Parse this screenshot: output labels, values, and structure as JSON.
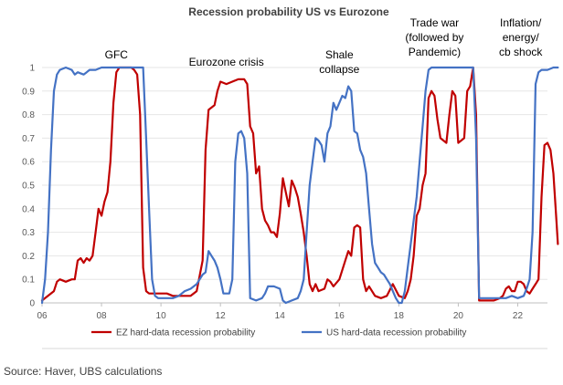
{
  "chart_data": {
    "type": "line",
    "title": "Recession probability US vs Eurozone",
    "xlabel": "",
    "ylabel": "",
    "xlim": [
      6,
      23
    ],
    "ylim": [
      0,
      1
    ],
    "x_ticks": [
      "06",
      "08",
      "10",
      "12",
      "14",
      "16",
      "18",
      "20",
      "22"
    ],
    "y_ticks": [
      "0",
      "0.1",
      "0.2",
      "0.3",
      "0.4",
      "0.5",
      "0.6",
      "0.7",
      "0.8",
      "0.9",
      "1"
    ],
    "grid": "horizontal",
    "legend_position": "bottom",
    "annotations": [
      {
        "lines": [
          "GFC"
        ],
        "x": 8.5
      },
      {
        "lines": [
          "Eurozone crisis"
        ],
        "x": 12.2
      },
      {
        "lines": [
          "Shale",
          "collapse"
        ],
        "x": 16.0
      },
      {
        "lines": [
          "Trade war",
          "(followed by",
          "Pandemic)"
        ],
        "x": 19.2
      },
      {
        "lines": [
          "Inflation/",
          "energy/",
          "cb shock"
        ],
        "x": 22.1
      }
    ],
    "series": [
      {
        "name": "EZ hard-data recession probability",
        "color": "#c00000",
        "points": [
          [
            6.0,
            0.01
          ],
          [
            6.2,
            0.03
          ],
          [
            6.4,
            0.05
          ],
          [
            6.5,
            0.09
          ],
          [
            6.6,
            0.1
          ],
          [
            6.8,
            0.09
          ],
          [
            7.0,
            0.1
          ],
          [
            7.1,
            0.1
          ],
          [
            7.2,
            0.18
          ],
          [
            7.3,
            0.19
          ],
          [
            7.4,
            0.17
          ],
          [
            7.5,
            0.19
          ],
          [
            7.6,
            0.18
          ],
          [
            7.7,
            0.2
          ],
          [
            7.8,
            0.3
          ],
          [
            7.9,
            0.4
          ],
          [
            8.0,
            0.37
          ],
          [
            8.1,
            0.43
          ],
          [
            8.2,
            0.47
          ],
          [
            8.3,
            0.6
          ],
          [
            8.4,
            0.85
          ],
          [
            8.5,
            0.98
          ],
          [
            8.6,
            1.0
          ],
          [
            9.0,
            1.0
          ],
          [
            9.1,
            0.99
          ],
          [
            9.2,
            0.97
          ],
          [
            9.3,
            0.8
          ],
          [
            9.4,
            0.15
          ],
          [
            9.5,
            0.05
          ],
          [
            9.6,
            0.04
          ],
          [
            9.8,
            0.04
          ],
          [
            10.0,
            0.04
          ],
          [
            10.2,
            0.04
          ],
          [
            10.4,
            0.03
          ],
          [
            10.6,
            0.03
          ],
          [
            10.8,
            0.03
          ],
          [
            11.0,
            0.03
          ],
          [
            11.2,
            0.05
          ],
          [
            11.4,
            0.18
          ],
          [
            11.5,
            0.65
          ],
          [
            11.6,
            0.82
          ],
          [
            11.7,
            0.83
          ],
          [
            11.8,
            0.84
          ],
          [
            11.9,
            0.9
          ],
          [
            12.0,
            0.94
          ],
          [
            12.2,
            0.93
          ],
          [
            12.4,
            0.94
          ],
          [
            12.6,
            0.95
          ],
          [
            12.8,
            0.95
          ],
          [
            12.9,
            0.93
          ],
          [
            13.0,
            0.75
          ],
          [
            13.1,
            0.72
          ],
          [
            13.2,
            0.55
          ],
          [
            13.3,
            0.58
          ],
          [
            13.4,
            0.4
          ],
          [
            13.5,
            0.35
          ],
          [
            13.6,
            0.33
          ],
          [
            13.7,
            0.3
          ],
          [
            13.8,
            0.3
          ],
          [
            13.9,
            0.28
          ],
          [
            14.0,
            0.38
          ],
          [
            14.1,
            0.53
          ],
          [
            14.2,
            0.47
          ],
          [
            14.3,
            0.41
          ],
          [
            14.4,
            0.52
          ],
          [
            14.5,
            0.49
          ],
          [
            14.6,
            0.45
          ],
          [
            14.7,
            0.38
          ],
          [
            14.8,
            0.3
          ],
          [
            14.9,
            0.2
          ],
          [
            15.0,
            0.08
          ],
          [
            15.1,
            0.05
          ],
          [
            15.2,
            0.08
          ],
          [
            15.3,
            0.05
          ],
          [
            15.5,
            0.06
          ],
          [
            15.6,
            0.1
          ],
          [
            15.7,
            0.09
          ],
          [
            15.8,
            0.07
          ],
          [
            16.0,
            0.1
          ],
          [
            16.2,
            0.18
          ],
          [
            16.3,
            0.22
          ],
          [
            16.4,
            0.2
          ],
          [
            16.5,
            0.32
          ],
          [
            16.6,
            0.33
          ],
          [
            16.7,
            0.32
          ],
          [
            16.8,
            0.1
          ],
          [
            16.9,
            0.05
          ],
          [
            17.0,
            0.07
          ],
          [
            17.2,
            0.03
          ],
          [
            17.4,
            0.02
          ],
          [
            17.6,
            0.03
          ],
          [
            17.8,
            0.08
          ],
          [
            18.0,
            0.03
          ],
          [
            18.2,
            0.02
          ],
          [
            18.3,
            0.05
          ],
          [
            18.4,
            0.1
          ],
          [
            18.5,
            0.2
          ],
          [
            18.6,
            0.37
          ],
          [
            18.7,
            0.4
          ],
          [
            18.8,
            0.5
          ],
          [
            18.9,
            0.55
          ],
          [
            19.0,
            0.87
          ],
          [
            19.1,
            0.9
          ],
          [
            19.2,
            0.88
          ],
          [
            19.3,
            0.78
          ],
          [
            19.4,
            0.7
          ],
          [
            19.6,
            0.68
          ],
          [
            19.7,
            0.8
          ],
          [
            19.8,
            0.9
          ],
          [
            19.9,
            0.88
          ],
          [
            20.0,
            0.68
          ],
          [
            20.2,
            0.7
          ],
          [
            20.3,
            0.9
          ],
          [
            20.4,
            0.92
          ],
          [
            20.5,
            1.0
          ],
          [
            20.6,
            0.8
          ],
          [
            20.7,
            0.01
          ],
          [
            21.0,
            0.01
          ],
          [
            21.2,
            0.01
          ],
          [
            21.4,
            0.02
          ],
          [
            21.5,
            0.03
          ],
          [
            21.6,
            0.06
          ],
          [
            21.7,
            0.07
          ],
          [
            21.8,
            0.05
          ],
          [
            21.9,
            0.05
          ],
          [
            22.0,
            0.09
          ],
          [
            22.1,
            0.09
          ],
          [
            22.2,
            0.08
          ],
          [
            22.3,
            0.05
          ],
          [
            22.4,
            0.04
          ],
          [
            22.5,
            0.06
          ],
          [
            22.6,
            0.08
          ],
          [
            22.7,
            0.1
          ],
          [
            22.8,
            0.45
          ],
          [
            22.9,
            0.67
          ],
          [
            23.0,
            0.68
          ],
          [
            23.1,
            0.65
          ],
          [
            23.2,
            0.55
          ],
          [
            23.3,
            0.35
          ],
          [
            23.35,
            0.25
          ]
        ]
      },
      {
        "name": "US hard-data recession probability",
        "color": "#4472c4",
        "points": [
          [
            6.0,
            0.0
          ],
          [
            6.1,
            0.1
          ],
          [
            6.2,
            0.3
          ],
          [
            6.3,
            0.65
          ],
          [
            6.4,
            0.9
          ],
          [
            6.5,
            0.97
          ],
          [
            6.6,
            0.99
          ],
          [
            6.8,
            1.0
          ],
          [
            7.0,
            0.99
          ],
          [
            7.1,
            0.97
          ],
          [
            7.2,
            0.98
          ],
          [
            7.4,
            0.97
          ],
          [
            7.5,
            0.98
          ],
          [
            7.6,
            0.99
          ],
          [
            7.8,
            0.99
          ],
          [
            8.0,
            1.0
          ],
          [
            9.0,
            1.0
          ],
          [
            9.4,
            1.0
          ],
          [
            9.5,
            0.7
          ],
          [
            9.6,
            0.4
          ],
          [
            9.7,
            0.1
          ],
          [
            9.8,
            0.03
          ],
          [
            9.9,
            0.02
          ],
          [
            10.0,
            0.02
          ],
          [
            10.2,
            0.02
          ],
          [
            10.4,
            0.02
          ],
          [
            10.6,
            0.03
          ],
          [
            10.8,
            0.05
          ],
          [
            11.0,
            0.06
          ],
          [
            11.2,
            0.08
          ],
          [
            11.4,
            0.12
          ],
          [
            11.5,
            0.13
          ],
          [
            11.6,
            0.22
          ],
          [
            11.7,
            0.2
          ],
          [
            11.8,
            0.18
          ],
          [
            11.9,
            0.15
          ],
          [
            12.0,
            0.1
          ],
          [
            12.1,
            0.04
          ],
          [
            12.2,
            0.04
          ],
          [
            12.3,
            0.04
          ],
          [
            12.4,
            0.1
          ],
          [
            12.5,
            0.6
          ],
          [
            12.6,
            0.72
          ],
          [
            12.7,
            0.73
          ],
          [
            12.8,
            0.7
          ],
          [
            12.9,
            0.55
          ],
          [
            13.0,
            0.02
          ],
          [
            13.2,
            0.01
          ],
          [
            13.4,
            0.02
          ],
          [
            13.5,
            0.04
          ],
          [
            13.6,
            0.07
          ],
          [
            13.8,
            0.07
          ],
          [
            14.0,
            0.06
          ],
          [
            14.1,
            0.01
          ],
          [
            14.2,
            0.0
          ],
          [
            14.4,
            0.01
          ],
          [
            14.6,
            0.02
          ],
          [
            14.7,
            0.05
          ],
          [
            14.8,
            0.1
          ],
          [
            14.9,
            0.3
          ],
          [
            15.0,
            0.5
          ],
          [
            15.1,
            0.6
          ],
          [
            15.2,
            0.7
          ],
          [
            15.3,
            0.69
          ],
          [
            15.4,
            0.67
          ],
          [
            15.5,
            0.6
          ],
          [
            15.6,
            0.72
          ],
          [
            15.7,
            0.75
          ],
          [
            15.8,
            0.85
          ],
          [
            15.9,
            0.82
          ],
          [
            16.0,
            0.85
          ],
          [
            16.1,
            0.88
          ],
          [
            16.2,
            0.87
          ],
          [
            16.3,
            0.92
          ],
          [
            16.4,
            0.9
          ],
          [
            16.5,
            0.73
          ],
          [
            16.6,
            0.72
          ],
          [
            16.7,
            0.65
          ],
          [
            16.8,
            0.62
          ],
          [
            16.9,
            0.55
          ],
          [
            17.0,
            0.4
          ],
          [
            17.1,
            0.25
          ],
          [
            17.2,
            0.17
          ],
          [
            17.3,
            0.15
          ],
          [
            17.4,
            0.13
          ],
          [
            17.5,
            0.12
          ],
          [
            17.6,
            0.1
          ],
          [
            17.7,
            0.08
          ],
          [
            17.8,
            0.05
          ],
          [
            17.9,
            0.02
          ],
          [
            18.0,
            0.0
          ],
          [
            18.1,
            0.0
          ],
          [
            18.2,
            0.05
          ],
          [
            18.3,
            0.15
          ],
          [
            18.4,
            0.25
          ],
          [
            18.5,
            0.35
          ],
          [
            18.6,
            0.45
          ],
          [
            18.7,
            0.6
          ],
          [
            18.8,
            0.75
          ],
          [
            18.9,
            0.9
          ],
          [
            19.0,
            0.99
          ],
          [
            19.1,
            1.0
          ],
          [
            20.5,
            1.0
          ],
          [
            20.6,
            0.7
          ],
          [
            20.7,
            0.02
          ],
          [
            21.0,
            0.02
          ],
          [
            21.2,
            0.02
          ],
          [
            21.4,
            0.02
          ],
          [
            21.6,
            0.02
          ],
          [
            21.8,
            0.03
          ],
          [
            22.0,
            0.02
          ],
          [
            22.2,
            0.03
          ],
          [
            22.3,
            0.06
          ],
          [
            22.4,
            0.1
          ],
          [
            22.5,
            0.3
          ],
          [
            22.6,
            0.93
          ],
          [
            22.7,
            0.98
          ],
          [
            22.8,
            0.99
          ],
          [
            23.0,
            0.99
          ],
          [
            23.2,
            1.0
          ],
          [
            23.35,
            1.0
          ]
        ]
      }
    ],
    "source": "Source: Haver, UBS calculations"
  }
}
